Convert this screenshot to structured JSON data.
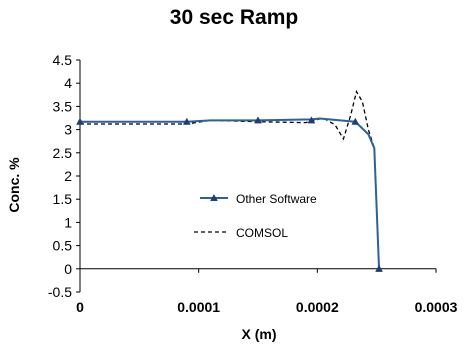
{
  "chart_data": {
    "type": "line",
    "title": "30 sec Ramp",
    "xlabel": "X (m)",
    "ylabel": "Conc. %",
    "xlim": [
      0,
      0.0003
    ],
    "ylim": [
      -0.5,
      4.5
    ],
    "x_ticks": [
      0,
      0.0001,
      0.0002,
      0.0003
    ],
    "x_tick_labels": [
      "0",
      "0.0001",
      "0.0002",
      "0.0003"
    ],
    "y_ticks": [
      -0.5,
      0,
      0.5,
      1,
      1.5,
      2,
      2.5,
      3,
      3.5,
      4,
      4.5
    ],
    "y_tick_labels": [
      "-0.5",
      "0",
      "0.5",
      "1",
      "1.5",
      "2",
      "2.5",
      "3",
      "3.5",
      "4",
      "4.5"
    ],
    "grid": false,
    "legend_position": "center",
    "series": [
      {
        "name": "Other Software",
        "style": "solid-marker",
        "color": "#2e5f9e",
        "x": [
          0,
          9e-05,
          0.00011,
          0.00015,
          0.000195,
          0.000202,
          0.000232,
          0.000243,
          0.000248,
          0.000252
        ],
        "y": [
          3.17,
          3.17,
          3.2,
          3.2,
          3.22,
          3.24,
          3.17,
          2.9,
          2.6,
          0.0
        ],
        "markers_x": [
          0,
          9e-05,
          0.00015,
          0.000195,
          0.000232,
          0.000252
        ],
        "markers_y": [
          3.17,
          3.17,
          3.2,
          3.2,
          3.17,
          0.0
        ]
      },
      {
        "name": "COMSOL",
        "style": "dashed",
        "color": "#000000",
        "x": [
          0,
          9e-05,
          0.00011,
          0.00015,
          0.00019,
          0.000205,
          0.000215,
          0.000222,
          0.000228,
          0.000233,
          0.000238,
          0.000243,
          0.000248,
          0.000252
        ],
        "y": [
          3.12,
          3.12,
          3.2,
          3.17,
          3.15,
          3.25,
          3.1,
          2.8,
          3.3,
          3.82,
          3.6,
          3.0,
          2.6,
          0.0
        ]
      }
    ]
  }
}
